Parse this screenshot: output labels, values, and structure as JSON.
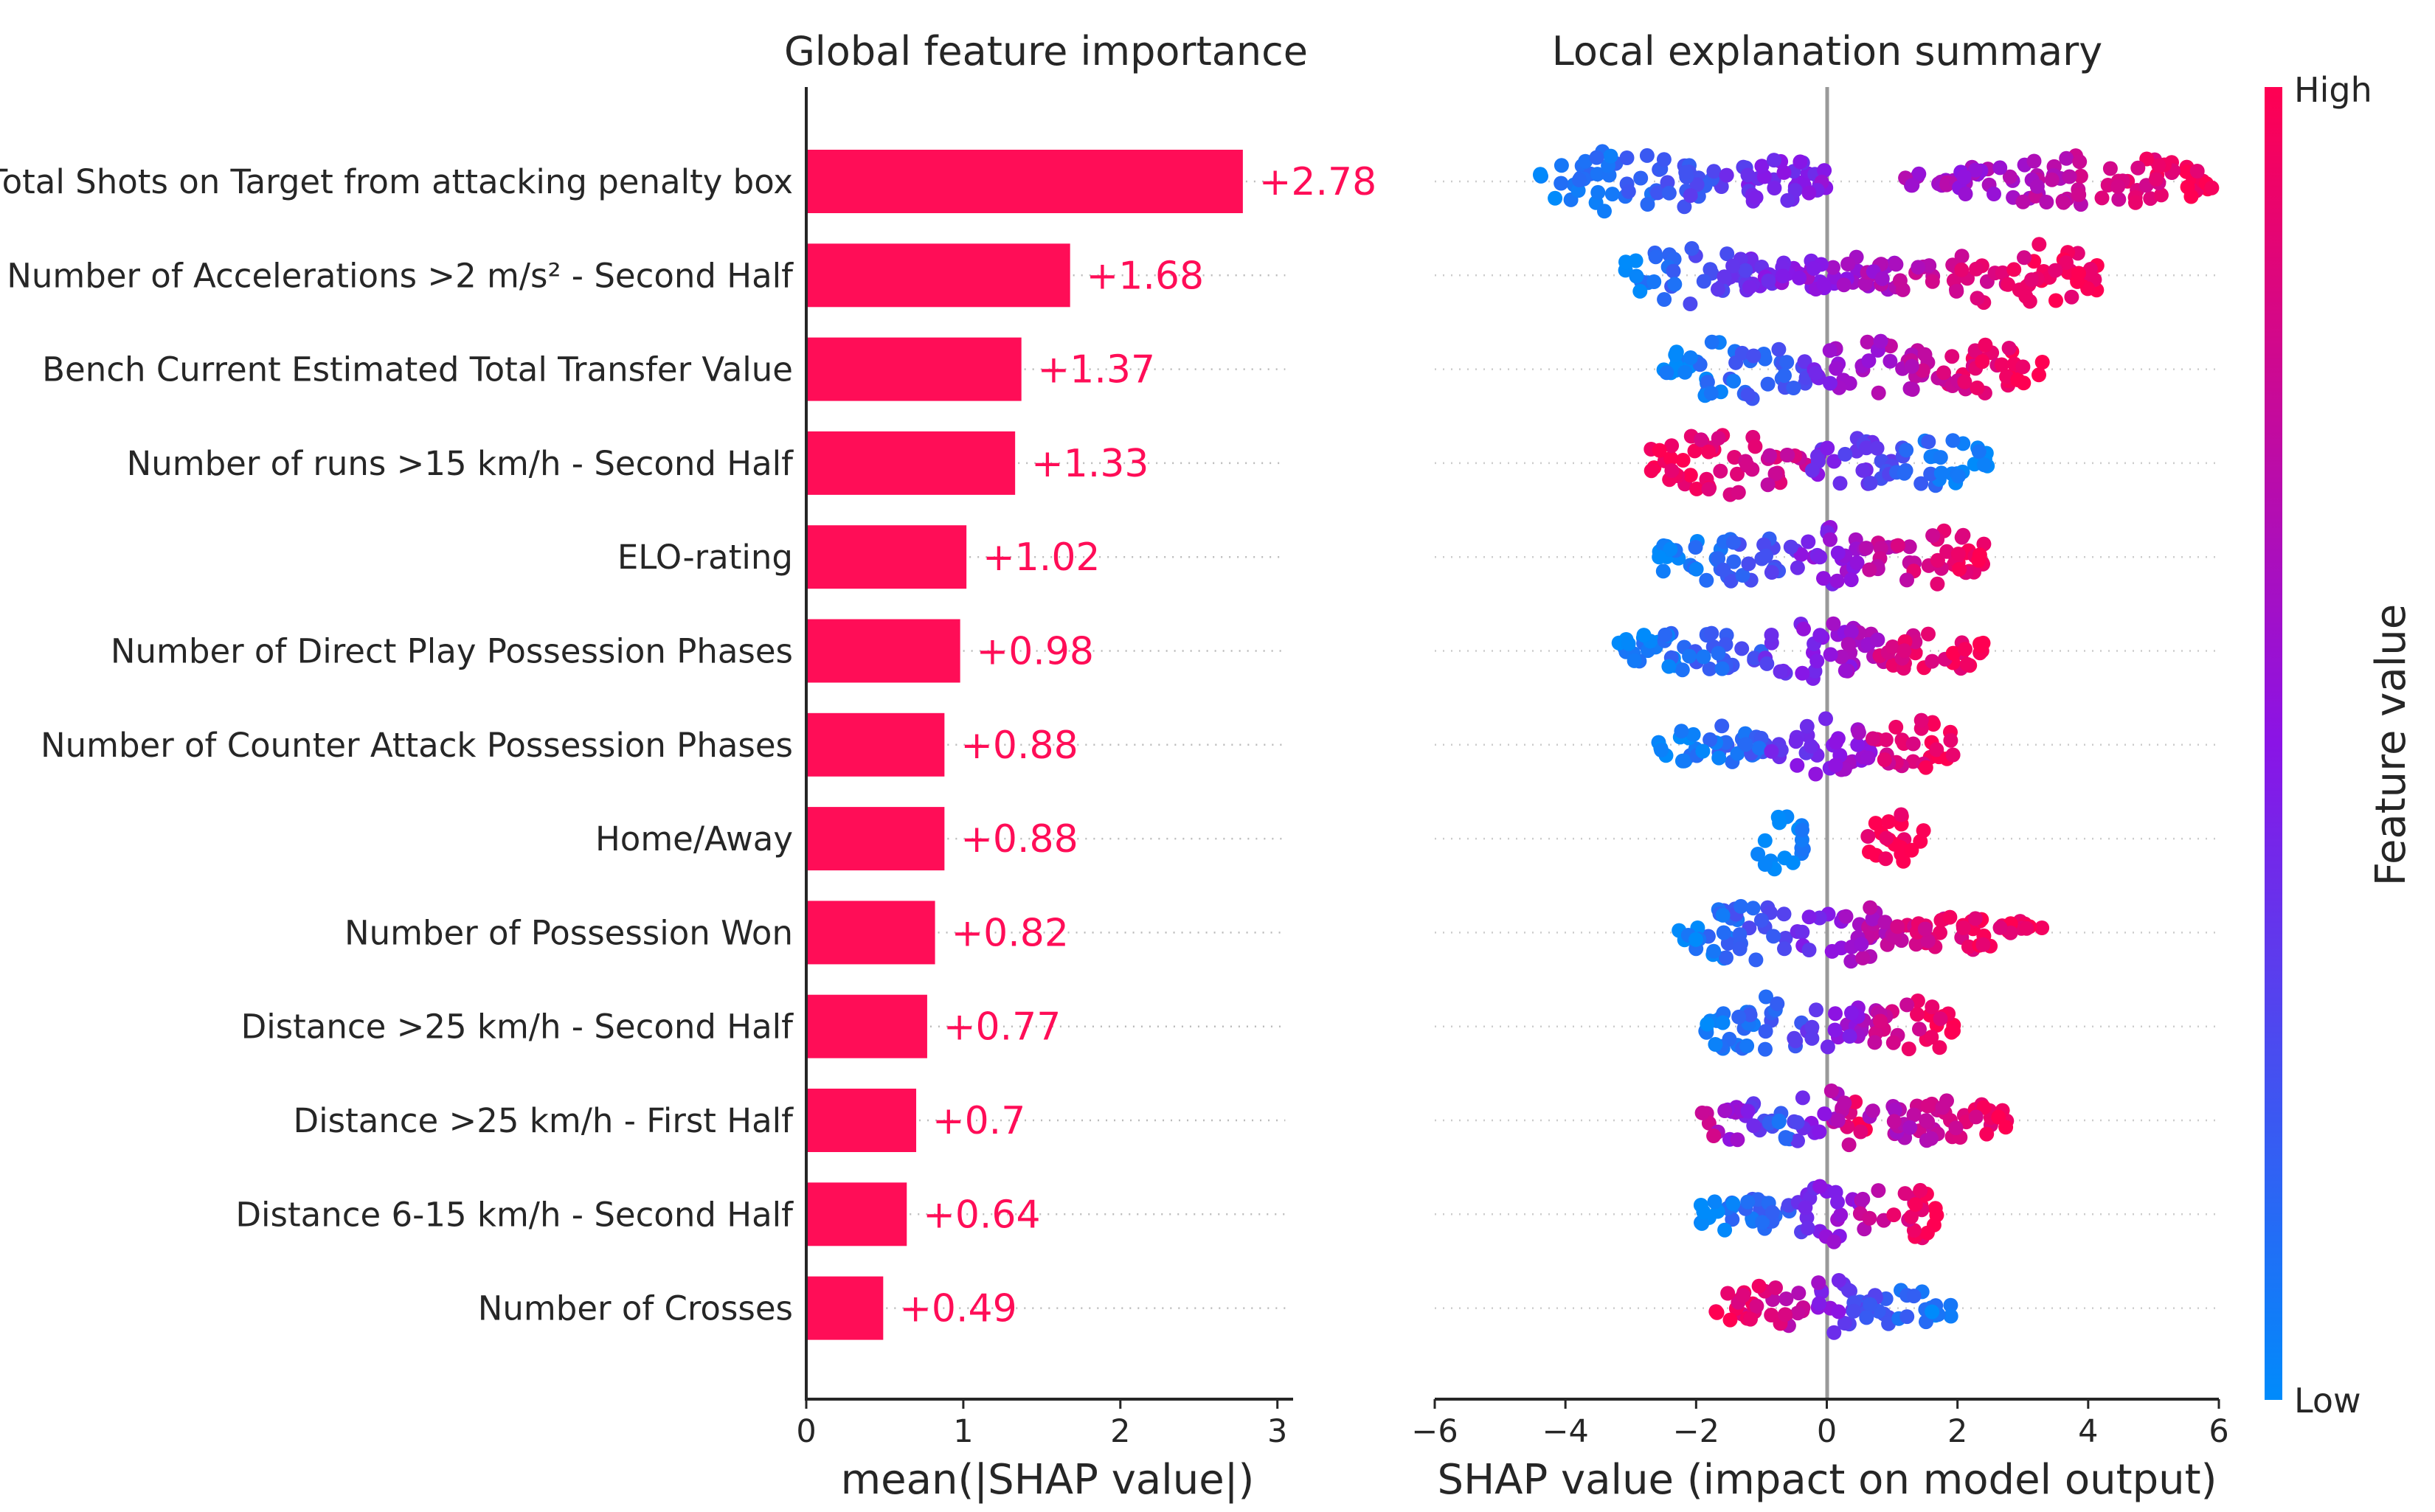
{
  "chart_data": [
    {
      "type": "bar",
      "title": "Global feature importance",
      "xlabel": "mean(|SHAP value|)",
      "ylabel": "",
      "xlim": [
        0,
        3.1
      ],
      "xticks": [
        0,
        1,
        2,
        3
      ],
      "bar_color": "#ff0d57",
      "categories": [
        "Total Shots on Target from attacking penalty box",
        "Number of Accelerations >2 m/s² - Second Half",
        "Bench Current Estimated Total Transfer Value",
        "Number of runs >15 km/h - Second Half",
        "ELO-rating",
        "Number of Direct Play Possession Phases",
        "Number of Counter Attack Possession Phases",
        "Home/Away",
        "Number of Possession Won",
        "Distance >25 km/h - Second Half",
        "Distance >25 km/h - First Half",
        "Distance 6-15 km/h - Second Half",
        "Number of Crosses"
      ],
      "values": [
        2.78,
        1.68,
        1.37,
        1.33,
        1.02,
        0.98,
        0.88,
        0.88,
        0.82,
        0.77,
        0.7,
        0.64,
        0.49
      ],
      "value_labels": [
        "+2.78",
        "+1.68",
        "+1.37",
        "+1.33",
        "+1.02",
        "+0.98",
        "+0.88",
        "+0.88",
        "+0.82",
        "+0.77",
        "+0.7",
        "+0.64",
        "+0.49"
      ]
    },
    {
      "type": "scatter",
      "subtype": "beeswarm",
      "title": "Local explanation summary",
      "xlabel": "SHAP value (impact on model output)",
      "xlim": [
        -6,
        6
      ],
      "xticks": [
        -6,
        -4,
        -2,
        0,
        2,
        4,
        6
      ],
      "xtick_labels": [
        "−6",
        "−4",
        "−2",
        "0",
        "2",
        "4",
        "6"
      ],
      "colorbar": {
        "label": "Feature value",
        "high": "High",
        "low": "Low",
        "high_color": "#ff0052",
        "mid_color": "#8a14e6",
        "low_color": "#008bfb"
      },
      "series": [
        {
          "name": "Total Shots on Target from attacking penalty box",
          "segments": [
            {
              "lo": -4.4,
              "hi": -1.6,
              "c0": 0.0,
              "c1": 0.3,
              "h": 1.0
            },
            {
              "lo": -1.6,
              "hi": 0.0,
              "c0": 0.35,
              "c1": 0.5,
              "h": 0.75
            },
            {
              "lo": 1.2,
              "hi": 2.0,
              "c0": 0.6,
              "c1": 0.65,
              "h": 0.3
            },
            {
              "lo": 2.0,
              "hi": 5.9,
              "c0": 0.55,
              "c1": 1.0,
              "h": 0.85
            }
          ]
        },
        {
          "name": "Number of Accelerations >2 m/s² - Second Half",
          "segments": [
            {
              "lo": -3.1,
              "hi": -1.0,
              "c0": 0.0,
              "c1": 0.4,
              "h": 0.9
            },
            {
              "lo": -1.0,
              "hi": 1.8,
              "c0": 0.45,
              "c1": 0.75,
              "h": 0.6
            },
            {
              "lo": 1.8,
              "hi": 4.2,
              "c0": 0.8,
              "c1": 1.0,
              "h": 1.0
            }
          ]
        },
        {
          "name": "Bench Current Estimated Total Transfer Value",
          "segments": [
            {
              "lo": -2.5,
              "hi": -0.2,
              "c0": 0.0,
              "c1": 0.3,
              "h": 1.0
            },
            {
              "lo": -0.2,
              "hi": 1.6,
              "c0": 0.5,
              "c1": 0.75,
              "h": 0.9
            },
            {
              "lo": 1.6,
              "hi": 3.3,
              "c0": 0.8,
              "c1": 1.0,
              "h": 0.75
            }
          ]
        },
        {
          "name": "Number of runs >15 km/h - Second Half",
          "segments": [
            {
              "lo": -2.7,
              "hi": -0.3,
              "c0": 1.0,
              "c1": 0.75,
              "h": 1.0
            },
            {
              "lo": -0.3,
              "hi": 1.0,
              "c0": 0.45,
              "c1": 0.3,
              "h": 0.8
            },
            {
              "lo": 1.0,
              "hi": 2.5,
              "c0": 0.2,
              "c1": 0.0,
              "h": 0.75
            }
          ]
        },
        {
          "name": "ELO-rating",
          "segments": [
            {
              "lo": -2.6,
              "hi": -0.6,
              "c0": 0.0,
              "c1": 0.3,
              "h": 0.85
            },
            {
              "lo": -0.6,
              "hi": 0.6,
              "c0": 0.4,
              "c1": 0.6,
              "h": 0.95
            },
            {
              "lo": 0.6,
              "hi": 2.6,
              "c0": 0.7,
              "c1": 1.0,
              "h": 0.85
            }
          ]
        },
        {
          "name": "Number of Direct Play Possession Phases",
          "segments": [
            {
              "lo": -3.2,
              "hi": -1.0,
              "c0": 0.0,
              "c1": 0.25,
              "h": 0.65
            },
            {
              "lo": -1.0,
              "hi": 0.8,
              "c0": 0.35,
              "c1": 0.65,
              "h": 0.95
            },
            {
              "lo": 0.8,
              "hi": 2.4,
              "c0": 0.8,
              "c1": 1.0,
              "h": 0.7
            }
          ]
        },
        {
          "name": "Number of Counter Attack Possession Phases",
          "segments": [
            {
              "lo": -2.7,
              "hi": -0.9,
              "c0": 0.0,
              "c1": 0.2,
              "h": 0.6
            },
            {
              "lo": -0.9,
              "hi": 0.7,
              "c0": 0.35,
              "c1": 0.6,
              "h": 0.95
            },
            {
              "lo": 0.7,
              "hi": 2.0,
              "c0": 0.8,
              "c1": 1.0,
              "h": 0.8
            }
          ]
        },
        {
          "name": "Home/Away",
          "segments": [
            {
              "lo": -1.15,
              "hi": -0.35,
              "c0": 0.0,
              "c1": 0.05,
              "h": 1.0
            },
            {
              "lo": 0.5,
              "hi": 1.5,
              "c0": 0.95,
              "c1": 1.0,
              "h": 0.8
            }
          ]
        },
        {
          "name": "Number of Possession Won",
          "segments": [
            {
              "lo": -2.3,
              "hi": -0.4,
              "c0": 0.0,
              "c1": 0.35,
              "h": 0.9
            },
            {
              "lo": -0.4,
              "hi": 1.0,
              "c0": 0.4,
              "c1": 0.75,
              "h": 1.0
            },
            {
              "lo": 1.0,
              "hi": 3.3,
              "c0": 0.8,
              "c1": 1.0,
              "h": 0.55
            }
          ]
        },
        {
          "name": "Distance >25 km/h - Second Half",
          "segments": [
            {
              "lo": -1.9,
              "hi": -0.3,
              "c0": 0.0,
              "c1": 0.3,
              "h": 0.95
            },
            {
              "lo": -0.3,
              "hi": 0.6,
              "c0": 0.35,
              "c1": 0.6,
              "h": 0.95
            },
            {
              "lo": 0.6,
              "hi": 2.0,
              "c0": 0.7,
              "c1": 1.0,
              "h": 0.85
            }
          ]
        },
        {
          "name": "Distance >25 km/h - First Half",
          "segments": [
            {
              "lo": -2.0,
              "hi": -0.8,
              "c0": 0.9,
              "c1": 0.2,
              "h": 0.6
            },
            {
              "lo": -0.8,
              "hi": 0.6,
              "c0": 0.05,
              "c1": 1.0,
              "h": 1.0
            },
            {
              "lo": 0.6,
              "hi": 2.8,
              "c0": 0.6,
              "c1": 0.95,
              "h": 0.65
            }
          ]
        },
        {
          "name": "Distance 6-15 km/h - Second Half",
          "segments": [
            {
              "lo": -2.0,
              "hi": -0.5,
              "c0": 0.0,
              "c1": 0.25,
              "h": 0.7
            },
            {
              "lo": -0.5,
              "hi": 0.5,
              "c0": 0.35,
              "c1": 0.6,
              "h": 0.9
            },
            {
              "lo": 0.5,
              "hi": 1.7,
              "c0": 0.7,
              "c1": 1.0,
              "h": 0.95
            }
          ]
        },
        {
          "name": "Number of Crosses",
          "segments": [
            {
              "lo": -1.7,
              "hi": -0.3,
              "c0": 1.0,
              "c1": 0.7,
              "h": 0.8
            },
            {
              "lo": -0.3,
              "hi": 0.4,
              "c0": 0.6,
              "c1": 0.35,
              "h": 1.0
            },
            {
              "lo": 0.4,
              "hi": 1.9,
              "c0": 0.3,
              "c1": 0.0,
              "h": 0.65
            }
          ]
        }
      ]
    }
  ]
}
